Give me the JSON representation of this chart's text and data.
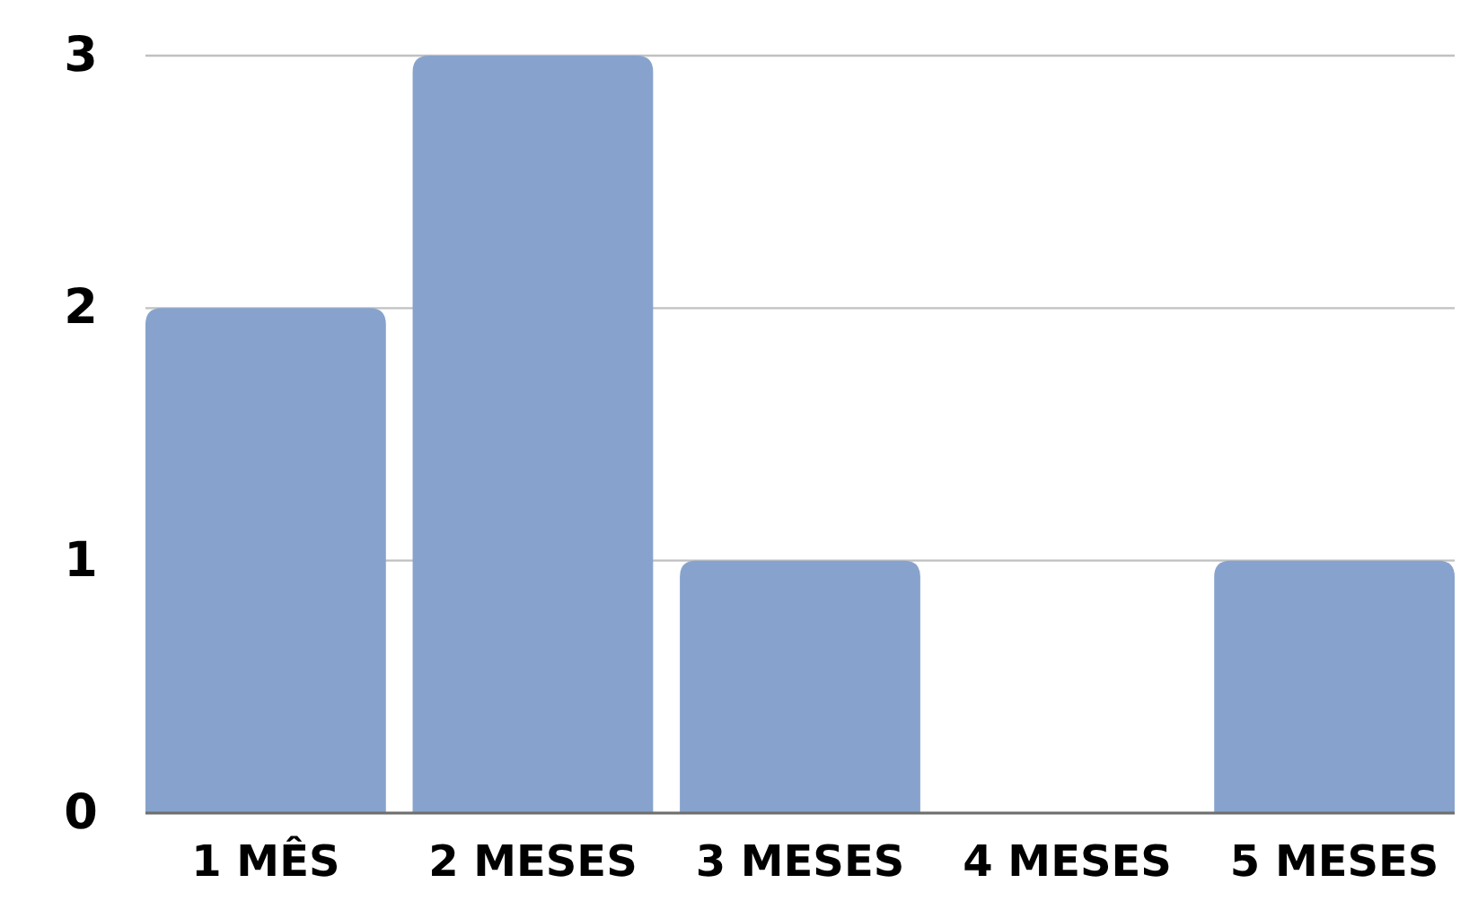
{
  "chart_data": {
    "type": "bar",
    "categories": [
      "1 MÊS",
      "2 MESES",
      "3 MESES",
      "4 MESES",
      "5 MESES"
    ],
    "values": [
      2,
      3,
      1,
      0,
      1
    ],
    "color": "#87a3cd",
    "ylim": [
      0,
      3
    ],
    "yticks": [
      0,
      1,
      2,
      3
    ],
    "grid": "y"
  }
}
